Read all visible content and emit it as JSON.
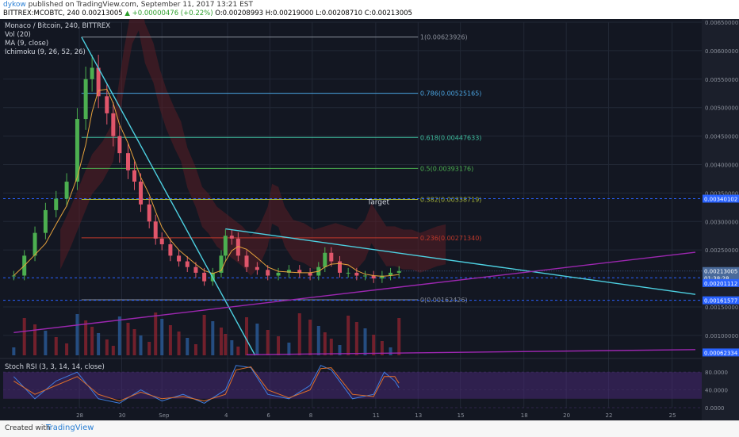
{
  "header": {
    "publisher_line_user": "dykow",
    "publisher_line_rest": " published on TradingView.com, September 11, 2017 13:21 EST",
    "ticker_line_prefix": "BITTREX:MCOBTC, 240  0.00213005",
    "ticker_line_change": "▲ +0.00000476 (+0.22%)",
    "ticker_line_ohlc": "O:0.00208993 H:0.00219000 L:0.00208710 C:0.00213005"
  },
  "legend": {
    "title": "Monaco / Bitcoin, 240, BITTREX",
    "vol": "Vol (20)",
    "ma": "MA (9, close)",
    "ichimoku": "Ichimoku (9, 26, 52, 26)"
  },
  "rsi_legend": "Stoch RSI (3, 3, 14, 14, close)",
  "footer": {
    "created_with": "Created with",
    "brand": "TradingView"
  },
  "chart_data": {
    "type": "candlestick",
    "price_axis": {
      "ylim": [
        0.00065,
        0.0065
      ],
      "ticks": [
        "0.00650000",
        "0.00600000",
        "0.00550000",
        "0.00500000",
        "0.00450000",
        "0.00400000",
        "0.00350000",
        "0.00300000",
        "0.00250000",
        "0.00150000",
        "0.00100000"
      ],
      "tick_values": [
        0.0065,
        0.006,
        0.0055,
        0.005,
        0.0045,
        0.004,
        0.0035,
        0.003,
        0.0025,
        0.0015,
        0.001
      ],
      "labels": [
        {
          "text": "0.00340102",
          "value": 0.00340102,
          "color": "#2962ff"
        },
        {
          "text": "0.00213005",
          "value": 0.00213005,
          "color": "#4a6a9a"
        },
        {
          "text": "01:38:28",
          "value": 0.00201112,
          "color": "#4a6a9a"
        },
        {
          "text": "0.00201112",
          "value": 0.00192,
          "color": "#2962ff"
        },
        {
          "text": "0.00161577",
          "value": 0.00161577,
          "color": "#2962ff"
        },
        {
          "text": "0.00062334",
          "value": 0.0007,
          "color": "#2962ff"
        }
      ]
    },
    "x_axis": {
      "ticks": [
        "28",
        "30",
        "Sep",
        "4",
        "6",
        "8",
        "11",
        "13",
        "15",
        "18",
        "20",
        "22",
        "25"
      ],
      "tick_days": [
        -3.9,
        -1.9,
        0,
        3.1,
        5.1,
        7.1,
        10.1,
        12.1,
        14.1,
        17.1,
        19.1,
        21.1,
        24.1
      ]
    },
    "fibonacci": [
      {
        "label": "1(0.00623926)",
        "value": 0.00623926,
        "color": "#8a8f9a"
      },
      {
        "label": "0.786(0.00525165)",
        "value": 0.00525165,
        "color": "#4aa3df"
      },
      {
        "label": "0.618(0.00447633)",
        "value": 0.00447633,
        "color": "#3fbf9f"
      },
      {
        "label": "0.5(0.00393176)",
        "value": 0.00393176,
        "color": "#4caf50"
      },
      {
        "label": "0.382(0.00338719)",
        "value": 0.00338719,
        "color": "#a3b33a"
      },
      {
        "label": "0.236(0.00271340)",
        "value": 0.0027134,
        "color": "#c0392b"
      },
      {
        "label": "0(0.00162426)",
        "value": 0.00162426,
        "color": "#8a8f9a"
      }
    ],
    "annotation": {
      "text": "Target",
      "day": 9.7,
      "value": 0.0033
    },
    "trendlines": [
      {
        "color": "#4dd0e1",
        "from": [
          -3.8,
          0.00623926
        ],
        "to": [
          4.4,
          0.00065
        ]
      },
      {
        "color": "#4dd0e1",
        "from": [
          3.0,
          0.00287
        ],
        "to": [
          25.2,
          0.00172
        ]
      },
      {
        "color": "#9c27b0",
        "from": [
          -7.0,
          0.00105
        ],
        "to": [
          25.2,
          0.00246
        ]
      },
      {
        "color": "#9c27b0",
        "from": [
          4.0,
          0.00066
        ],
        "to": [
          25.2,
          0.00075
        ]
      }
    ],
    "dashed_levels": [
      {
        "value": 0.00340102,
        "color": "#2962ff"
      },
      {
        "value": 0.00201112,
        "color": "#2962ff"
      },
      {
        "value": 0.00161577,
        "color": "#2962ff"
      }
    ],
    "current_price": 0.00213005,
    "price_path": [
      [
        -7.0,
        0.00205
      ],
      [
        -6.5,
        0.0024
      ],
      [
        -6.0,
        0.0028
      ],
      [
        -5.5,
        0.0032
      ],
      [
        -5.0,
        0.0034
      ],
      [
        -4.5,
        0.0037
      ],
      [
        -4.0,
        0.0048
      ],
      [
        -3.6,
        0.0055
      ],
      [
        -3.3,
        0.0057
      ],
      [
        -3.0,
        0.0052
      ],
      [
        -2.6,
        0.0049
      ],
      [
        -2.3,
        0.0045
      ],
      [
        -2.0,
        0.0042
      ],
      [
        -1.6,
        0.0039
      ],
      [
        -1.3,
        0.0037
      ],
      [
        -1.0,
        0.0033
      ],
      [
        -0.6,
        0.003
      ],
      [
        -0.3,
        0.0027
      ],
      [
        0.0,
        0.0026
      ],
      [
        0.4,
        0.0024
      ],
      [
        0.8,
        0.0023
      ],
      [
        1.2,
        0.0022
      ],
      [
        1.6,
        0.0021
      ],
      [
        2.0,
        0.00195
      ],
      [
        2.4,
        0.0021
      ],
      [
        2.8,
        0.0024
      ],
      [
        3.0,
        0.00275
      ],
      [
        3.3,
        0.0027
      ],
      [
        3.6,
        0.0024
      ],
      [
        4.0,
        0.0022
      ],
      [
        4.5,
        0.00215
      ],
      [
        5.0,
        0.00205
      ],
      [
        5.5,
        0.0021
      ],
      [
        6.0,
        0.00215
      ],
      [
        6.5,
        0.0021
      ],
      [
        7.0,
        0.00205
      ],
      [
        7.4,
        0.0022
      ],
      [
        7.7,
        0.00245
      ],
      [
        8.0,
        0.0023
      ],
      [
        8.4,
        0.0021
      ],
      [
        8.8,
        0.0021
      ],
      [
        9.2,
        0.00205
      ],
      [
        9.6,
        0.00205
      ],
      [
        10.0,
        0.002
      ],
      [
        10.4,
        0.00205
      ],
      [
        10.8,
        0.0021
      ],
      [
        11.2,
        0.00213
      ]
    ],
    "stoch_rsi": {
      "ylim": [
        0,
        100
      ],
      "ticks": [
        "80.0000",
        "40.0000",
        "0.0000"
      ],
      "tick_values": [
        80,
        40,
        0
      ],
      "band": [
        20,
        80
      ],
      "k": [
        [
          -7,
          70
        ],
        [
          -6,
          20
        ],
        [
          -5,
          60
        ],
        [
          -4,
          80
        ],
        [
          -3,
          20
        ],
        [
          -2,
          10
        ],
        [
          -1,
          40
        ],
        [
          0,
          15
        ],
        [
          1,
          30
        ],
        [
          2,
          10
        ],
        [
          3,
          40
        ],
        [
          3.5,
          95
        ],
        [
          4.2,
          90
        ],
        [
          5,
          30
        ],
        [
          6,
          20
        ],
        [
          7,
          50
        ],
        [
          7.5,
          95
        ],
        [
          8,
          85
        ],
        [
          9,
          20
        ],
        [
          10,
          30
        ],
        [
          10.5,
          80
        ],
        [
          11,
          60
        ],
        [
          11.2,
          45
        ]
      ],
      "d": [
        [
          -7,
          60
        ],
        [
          -6,
          30
        ],
        [
          -5,
          50
        ],
        [
          -4,
          70
        ],
        [
          -3,
          30
        ],
        [
          -2,
          15
        ],
        [
          -1,
          35
        ],
        [
          0,
          20
        ],
        [
          1,
          25
        ],
        [
          2,
          15
        ],
        [
          3,
          30
        ],
        [
          3.5,
          85
        ],
        [
          4.2,
          92
        ],
        [
          5,
          40
        ],
        [
          6,
          22
        ],
        [
          7,
          40
        ],
        [
          7.5,
          88
        ],
        [
          8,
          90
        ],
        [
          9,
          30
        ],
        [
          10,
          25
        ],
        [
          10.5,
          70
        ],
        [
          11,
          70
        ],
        [
          11.2,
          55
        ]
      ]
    }
  }
}
